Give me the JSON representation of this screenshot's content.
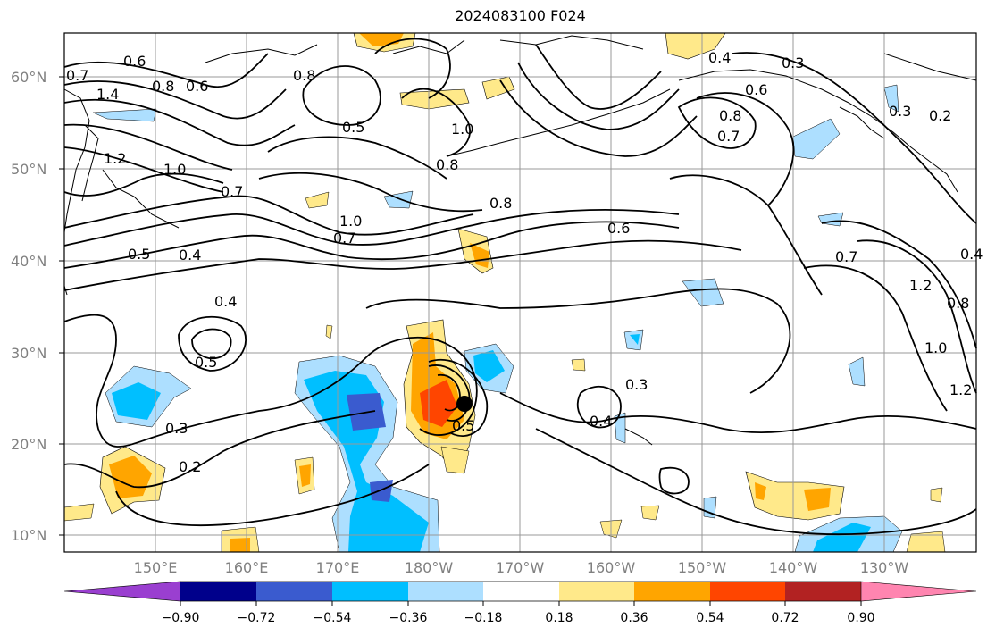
{
  "title": "2024083100 F024",
  "map": {
    "lat_labels": [
      "60°N",
      "50°N",
      "40°N",
      "30°N",
      "20°N",
      "10°N"
    ],
    "lon_labels": [
      "150°E",
      "160°E",
      "170°E",
      "180°W",
      "170°W",
      "160°W",
      "150°W",
      "140°W",
      "130°W"
    ],
    "contour_labels": [
      "0.7",
      "1.4",
      "0.6",
      "0.8",
      "0.6",
      "0.8",
      "0.4",
      "0.3",
      "0.6",
      "0.8",
      "0.7",
      "0.5",
      "1.0",
      "0.8",
      "1.2",
      "1.0",
      "0.7",
      "1.0",
      "0.7",
      "0.8",
      "0.6",
      "0.5",
      "0.4",
      "0.4",
      "0.5",
      "0.7",
      "1.2",
      "0.8",
      "1.0",
      "1.2",
      "0.3",
      "0.4",
      "0.3",
      "0.2",
      "0.5",
      "0.2",
      "0.3",
      "0.4"
    ],
    "storm_marker": "tropical cyclone position",
    "colors": {
      "frame": "#000000",
      "grid": "#999999",
      "contour": "#000000",
      "storm_marker": "#000000"
    }
  },
  "colorbar": {
    "tick_labels": [
      "−0.90",
      "−0.72",
      "−0.54",
      "−0.36",
      "−0.18",
      "0.18",
      "0.36",
      "0.54",
      "0.72",
      "0.90"
    ],
    "colors": [
      "#9a3fd0",
      "#00008b",
      "#3a5bcf",
      "#00bfff",
      "#addfff",
      "#ffffff",
      "#ffe98a",
      "#ffa500",
      "#ff4500",
      "#b22222",
      "#ff85b0"
    ]
  }
}
